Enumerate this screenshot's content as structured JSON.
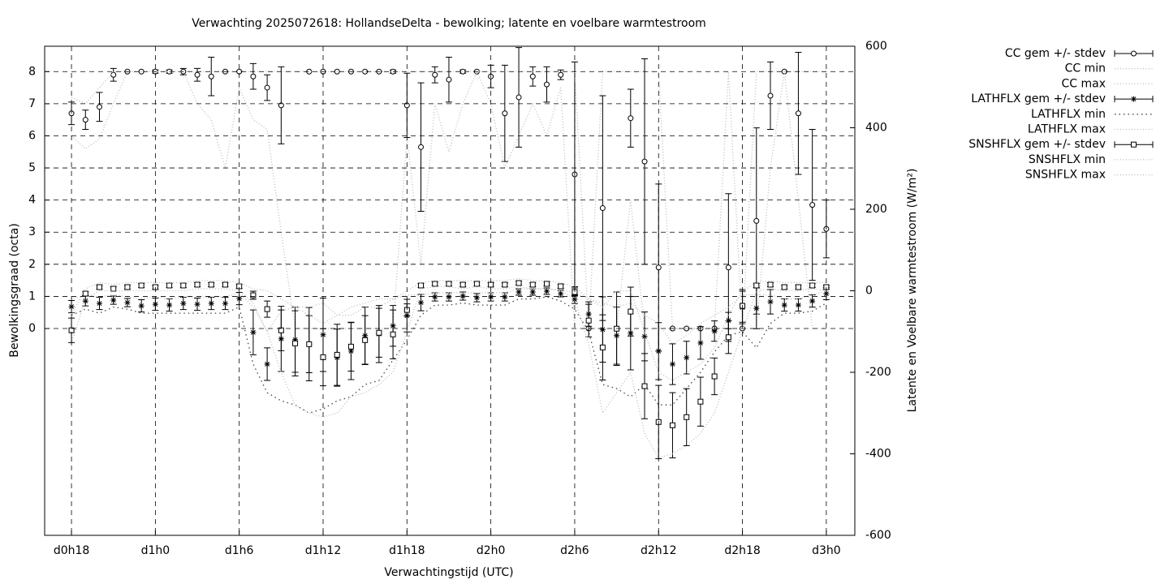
{
  "chart_data": {
    "type": "errorbar-line",
    "title": "Verwachting 2025072618: HollandseDelta - bewolking; latente en voelbare warmtestroom",
    "x_label": "Verwachtingstijd (UTC)",
    "y_label": "Bewolkingsgraad (octa)",
    "y2_label": "Latente en Voelbare warmtestroom (W/m²)",
    "grid": true,
    "legend": "outside-top-right",
    "x": [
      18,
      19,
      20,
      21,
      22,
      23,
      24,
      25,
      26,
      27,
      28,
      29,
      30,
      31,
      32,
      33,
      34,
      35,
      36,
      37,
      38,
      39,
      40,
      41,
      42,
      43,
      44,
      45,
      46,
      47,
      48,
      49,
      50,
      51,
      52,
      53,
      54,
      55,
      56,
      57,
      58,
      59,
      60,
      61,
      62,
      63,
      64,
      65,
      66,
      67,
      68,
      69,
      70,
      71,
      72
    ],
    "xlim": [
      16.08,
      74.04
    ],
    "xticks": [
      {
        "value": 18,
        "label": "d0h18"
      },
      {
        "value": 24,
        "label": "d1h0"
      },
      {
        "value": 30,
        "label": "d1h6"
      },
      {
        "value": 36,
        "label": "d1h12"
      },
      {
        "value": 42,
        "label": "d1h18"
      },
      {
        "value": 48,
        "label": "d2h0"
      },
      {
        "value": 54,
        "label": "d2h6"
      },
      {
        "value": 60,
        "label": "d2h12"
      },
      {
        "value": 66,
        "label": "d2h18"
      },
      {
        "value": 72,
        "label": "d3h0"
      }
    ],
    "ylim": [
      -6.44,
      8.79
    ],
    "yticks": [
      0,
      1,
      2,
      3,
      4,
      5,
      6,
      7,
      8
    ],
    "y2lim": [
      -600,
      600
    ],
    "y2ticks": [
      -600,
      -400,
      -200,
      0,
      200,
      400,
      600
    ],
    "series": [
      {
        "name": "CC gem +/- stdev",
        "color": "#000000",
        "axis": "y",
        "marker": "circle",
        "style": "errorbar",
        "values": [
          6.7,
          6.5,
          6.9,
          7.9,
          8,
          8,
          8,
          8,
          8,
          7.9,
          7.85,
          8,
          8,
          7.85,
          7.5,
          6.95,
          null,
          8,
          8,
          8,
          8,
          8,
          8,
          8,
          6.95,
          5.65,
          7.9,
          7.75,
          8,
          8,
          7.85,
          6.7,
          7.2,
          7.85,
          7.6,
          7.9,
          4.8,
          0,
          3.75,
          null,
          6.55,
          5.2,
          1.9,
          0,
          0,
          0,
          0,
          1.9,
          0,
          3.35,
          7.25,
          8,
          6.7,
          3.85,
          3.1
        ],
        "errors": [
          0.35,
          0.3,
          0.45,
          0.2,
          0,
          0,
          0.05,
          0.05,
          0.1,
          0.2,
          0.6,
          0,
          0,
          0.4,
          0.4,
          1.2,
          null,
          0,
          0,
          0,
          0,
          0,
          0,
          0.05,
          1.0,
          2.0,
          0.25,
          0.7,
          0.05,
          0,
          0.35,
          1.5,
          1.55,
          0.3,
          0.55,
          0.15,
          3.5,
          0,
          3.5,
          null,
          0.9,
          3.2,
          2.6,
          0,
          0,
          0,
          0,
          2.3,
          0,
          2.9,
          1.05,
          0,
          1.9,
          2.35,
          0.9
        ]
      },
      {
        "name": "CC min",
        "color": "#bbbbbb",
        "axis": "y",
        "style": "dotted",
        "values": [
          6,
          5.6,
          5.9,
          7,
          8,
          8,
          8,
          8,
          8,
          7,
          6.5,
          5,
          7.5,
          6.5,
          6.2,
          3,
          0,
          0,
          0,
          0,
          0,
          0,
          0,
          0,
          6,
          2,
          7,
          5.5,
          7,
          8,
          7,
          5,
          6,
          7,
          6,
          7.5,
          0,
          0,
          0,
          0,
          4,
          0,
          0,
          0,
          0,
          0,
          0,
          0,
          0,
          0,
          5,
          8,
          4,
          0,
          0
        ]
      },
      {
        "name": "CC max",
        "color": "#bbbbbb",
        "axis": "y",
        "style": "dotted",
        "values": [
          7.2,
          7,
          7.5,
          8,
          8,
          8,
          8,
          8,
          8,
          8,
          8,
          8,
          8,
          8,
          8,
          8,
          8,
          8,
          8,
          8,
          8,
          8,
          8,
          8,
          8,
          8,
          8,
          8,
          8,
          8,
          8,
          8,
          8,
          8,
          8,
          8,
          8,
          0,
          8,
          8,
          8,
          8,
          8,
          0,
          0,
          0,
          0,
          8,
          0,
          8,
          8,
          8,
          8,
          8,
          8
        ]
      },
      {
        "name": "LATHFLX gem +/- stdev",
        "color": "#000000",
        "axis": "y2",
        "marker": "star",
        "style": "errorbar",
        "values": [
          -39,
          -25,
          -31,
          -23,
          -29,
          -37,
          -33,
          -35,
          -31,
          -33,
          -31,
          -31,
          -19,
          -102,
          -180,
          -118,
          -120,
          -131,
          -108,
          -164,
          -148,
          -110,
          -106,
          -86,
          -61,
          -29,
          -15,
          -15,
          -13,
          -17,
          -15,
          -15,
          -3,
          -3,
          -1,
          -7,
          -21,
          -57,
          -95,
          -110,
          -104,
          -112,
          -148,
          -180,
          -164,
          -128,
          -99,
          -73,
          -41,
          -43,
          -27,
          -35,
          -35,
          -25,
          -7
        ],
        "errors": [
          15,
          12,
          15,
          10,
          10,
          15,
          15,
          15,
          15,
          15,
          15,
          15,
          15,
          55,
          40,
          80,
          80,
          90,
          90,
          70,
          70,
          70,
          70,
          50,
          40,
          20,
          10,
          10,
          10,
          10,
          10,
          10,
          8,
          8,
          8,
          8,
          10,
          30,
          80,
          70,
          90,
          60,
          70,
          50,
          40,
          40,
          25,
          20,
          40,
          50,
          30,
          15,
          15,
          15,
          15
        ]
      },
      {
        "name": "LATHFLX min",
        "color": "#444444",
        "axis": "y2",
        "style": "dotted",
        "values": [
          -60,
          -45,
          -55,
          -40,
          -45,
          -55,
          -55,
          -55,
          -55,
          -55,
          -55,
          -55,
          -40,
          -180,
          -250,
          -270,
          -280,
          -300,
          -290,
          -270,
          -260,
          -230,
          -220,
          -170,
          -120,
          -60,
          -35,
          -35,
          -30,
          -35,
          -35,
          -35,
          -20,
          -20,
          -15,
          -25,
          -45,
          -100,
          -230,
          -240,
          -260,
          -230,
          -280,
          -280,
          -240,
          -200,
          -150,
          -110,
          -100,
          -140,
          -80,
          -55,
          -55,
          -50,
          -30
        ]
      },
      {
        "name": "LATHFLX max",
        "color": "#bbbbbb",
        "axis": "y2",
        "style": "dotted",
        "values": [
          -20,
          -10,
          -15,
          -10,
          -15,
          -20,
          -15,
          -20,
          -15,
          -15,
          -15,
          -15,
          -5,
          -40,
          -100,
          -50,
          -40,
          -40,
          -30,
          -60,
          -60,
          -40,
          -40,
          -20,
          -10,
          -10,
          -5,
          -5,
          -5,
          -5,
          -5,
          -5,
          5,
          5,
          5,
          2,
          -5,
          -20,
          -30,
          -40,
          -30,
          -60,
          -80,
          -130,
          -110,
          -80,
          -60,
          -40,
          -10,
          -10,
          -10,
          -20,
          -20,
          -10,
          0
        ]
      },
      {
        "name": "SNSHFLX gem +/- stdev",
        "color": "#000000",
        "axis": "y2",
        "marker": "square",
        "style": "errorbar",
        "values": [
          -97,
          -7,
          9,
          5,
          9,
          13,
          9,
          13,
          13,
          15,
          15,
          15,
          11,
          -11,
          -45,
          -97,
          -129,
          -131,
          -163,
          -157,
          -137,
          -121,
          -103,
          -107,
          -47,
          13,
          17,
          17,
          15,
          17,
          15,
          15,
          19,
          15,
          17,
          11,
          -3,
          -73,
          -139,
          -93,
          -51,
          -234,
          -322,
          -330,
          -310,
          -272,
          -210,
          -114,
          -37,
          13,
          15,
          9,
          9,
          13,
          9
        ],
        "errors": [
          30,
          5,
          5,
          5,
          5,
          5,
          5,
          5,
          5,
          5,
          5,
          5,
          5,
          10,
          20,
          50,
          80,
          70,
          70,
          75,
          60,
          60,
          60,
          60,
          15,
          5,
          5,
          5,
          5,
          5,
          5,
          5,
          5,
          5,
          5,
          5,
          10,
          40,
          80,
          90,
          60,
          80,
          90,
          80,
          70,
          60,
          45,
          40,
          40,
          5,
          5,
          5,
          5,
          5,
          5
        ]
      },
      {
        "name": "SNSHFLX min",
        "color": "#bbbbbb",
        "axis": "y2",
        "style": "dotted",
        "values": [
          -130,
          -20,
          0,
          0,
          0,
          0,
          0,
          0,
          0,
          5,
          5,
          5,
          0,
          -30,
          -100,
          -200,
          -280,
          -300,
          -310,
          -300,
          -260,
          -250,
          -230,
          -200,
          -100,
          5,
          10,
          10,
          5,
          10,
          5,
          5,
          10,
          5,
          5,
          0,
          -20,
          -130,
          -300,
          -250,
          -200,
          -350,
          -410,
          -400,
          -380,
          -350,
          -300,
          -200,
          -100,
          0,
          5,
          0,
          0,
          5,
          0
        ]
      },
      {
        "name": "SNSHFLX max",
        "color": "#bbbbbb",
        "axis": "y2",
        "style": "dotted",
        "values": [
          -60,
          5,
          20,
          15,
          20,
          20,
          20,
          20,
          20,
          25,
          25,
          25,
          20,
          5,
          0,
          -20,
          -40,
          -60,
          -80,
          -60,
          -40,
          -30,
          -20,
          -20,
          0,
          20,
          25,
          25,
          25,
          25,
          25,
          25,
          30,
          25,
          25,
          20,
          10,
          -20,
          -40,
          0,
          0,
          -100,
          -200,
          -220,
          -200,
          -180,
          -140,
          -60,
          0,
          20,
          25,
          20,
          20,
          20,
          20
        ]
      }
    ]
  }
}
